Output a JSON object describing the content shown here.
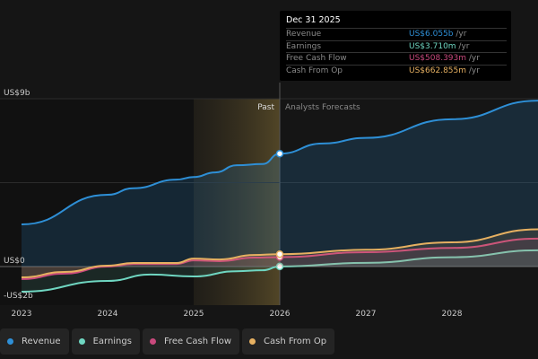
{
  "tooltip": {
    "date": "Dec 31 2025",
    "rows": [
      {
        "label": "Revenue",
        "value": "US$6.055b",
        "unit": " /yr",
        "color": "#2e8fd6"
      },
      {
        "label": "Earnings",
        "value": "US$3.710m",
        "unit": " /yr",
        "color": "#6fd6c1"
      },
      {
        "label": "Free Cash Flow",
        "value": "US$508.393m",
        "unit": " /yr",
        "color": "#c9497d"
      },
      {
        "label": "Cash From Op",
        "value": "US$662.855m",
        "unit": " /yr",
        "color": "#e6b061"
      }
    ]
  },
  "legend": [
    {
      "label": "Revenue",
      "color": "#2e8fd6"
    },
    {
      "label": "Earnings",
      "color": "#6fd6c1"
    },
    {
      "label": "Free Cash Flow",
      "color": "#c9497d"
    },
    {
      "label": "Cash From Op",
      "color": "#e6b061"
    }
  ],
  "chart_data": {
    "type": "line",
    "ylim": [
      -2,
      9
    ],
    "xlim": [
      2023,
      2029
    ],
    "y_tick_labels": [
      {
        "v": 9,
        "label": "US$9b"
      },
      {
        "v": 0,
        "label": "US$0"
      },
      {
        "v": -2,
        "label": "-US$2b"
      }
    ],
    "x_tick_labels": [
      "2023",
      "2024",
      "2025",
      "2026",
      "2027",
      "2028"
    ],
    "past_label": "Past",
    "forecast_label": "Analysts Forecasts",
    "divider_x": 2026,
    "highlight_range": [
      2025,
      2026
    ],
    "series": [
      {
        "name": "Revenue",
        "color": "#2e8fd6",
        "filled": true,
        "x": [
          2023,
          2024,
          2024.3,
          2024.8,
          2025,
          2025.25,
          2025.5,
          2025.8,
          2026,
          2026.5,
          2027,
          2028,
          2029
        ],
        "y": [
          2.26,
          3.85,
          4.2,
          4.66,
          4.8,
          5.05,
          5.43,
          5.5,
          6.055,
          6.6,
          6.9,
          7.9,
          8.9
        ]
      },
      {
        "name": "Earnings",
        "color": "#6fd6c1",
        "x": [
          2023,
          2024,
          2024.5,
          2025,
          2025.5,
          2025.8,
          2026,
          2027,
          2028,
          2029
        ],
        "y": [
          -1.35,
          -0.77,
          -0.43,
          -0.53,
          -0.25,
          -0.2,
          0.0037,
          0.2,
          0.5,
          0.87
        ]
      },
      {
        "name": "Free Cash Flow",
        "color": "#c9497d",
        "x": [
          2023,
          2023.5,
          2024,
          2024.3,
          2024.8,
          2025,
          2025.3,
          2025.7,
          2026,
          2027,
          2028,
          2029
        ],
        "y": [
          -0.67,
          -0.38,
          0,
          0.14,
          0.14,
          0.33,
          0.29,
          0.48,
          0.508,
          0.77,
          1.0,
          1.5
        ]
      },
      {
        "name": "Cash From Op",
        "color": "#e6b061",
        "x": [
          2023,
          2023.5,
          2024,
          2024.3,
          2024.8,
          2025,
          2025.3,
          2025.7,
          2026,
          2027,
          2028,
          2029
        ],
        "y": [
          -0.58,
          -0.29,
          0.05,
          0.19,
          0.19,
          0.43,
          0.38,
          0.62,
          0.663,
          0.9,
          1.3,
          2.0
        ]
      }
    ]
  }
}
